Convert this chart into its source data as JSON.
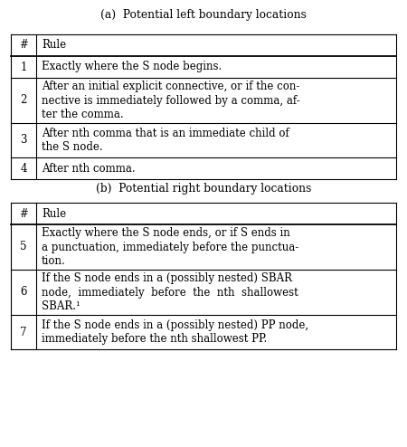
{
  "title_a": "(a)  Potential left boundary locations",
  "title_b": "(b)  Potential right boundary locations",
  "header": [
    "#",
    "Rule"
  ],
  "rows_a": [
    [
      "1",
      "Exactly where the S node begins."
    ],
    [
      "2",
      "After an initial explicit connective, or if the con-\nnective is immediately followed by a comma, af-\nter the comma."
    ],
    [
      "3",
      "After nth comma that is an immediate child of\nthe S node."
    ],
    [
      "4",
      "After nth comma."
    ]
  ],
  "rows_b": [
    [
      "5",
      "Exactly where the S node ends, or if S ends in\na punctuation, immediately before the punctua-\ntion."
    ],
    [
      "6",
      "If the S node ends in a (possibly nested) SBAR\nnode,  immediately  before  the  nth  shallowest\nSBAR.¹"
    ],
    [
      "7",
      "If the S node ends in a (possibly nested) PP node,\nimmediately before the nth shallowest PP."
    ]
  ],
  "bg_color": "#ffffff",
  "text_color": "#000000",
  "font_size": 8.5,
  "title_font_size": 8.8,
  "line_color": "#000000",
  "fig_width": 4.5,
  "fig_height": 4.94,
  "dpi": 100
}
